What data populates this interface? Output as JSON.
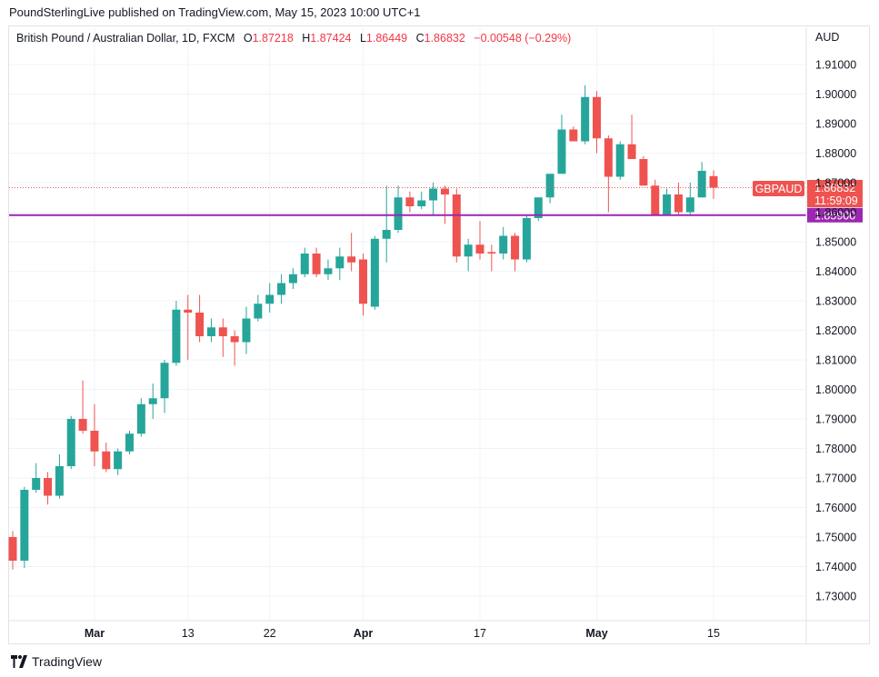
{
  "header": {
    "publisher_text": "PoundSterlingLive published on TradingView.com, May 15, 2023 10:00 UTC+1"
  },
  "legend": {
    "symbol_desc": "British Pound / Australian Dollar, 1D, FXCM",
    "open_label": "O",
    "open_value": "1.87218",
    "high_label": "H",
    "high_value": "1.87424",
    "low_label": "L",
    "low_value": "1.86449",
    "close_label": "C",
    "close_value": "1.86832",
    "change": "−0.00548 (−0.29%)"
  },
  "footer": {
    "brand": "TradingView"
  },
  "colors": {
    "up": "#26a69a",
    "down": "#ef5350",
    "hline": "#9c27b0",
    "grid": "#f0f3fa"
  },
  "chart_data": {
    "type": "candlestick",
    "symbol": "GBPAUD",
    "currency_label": "AUD",
    "y_ticks": [
      "1.73000",
      "1.74000",
      "1.75000",
      "1.76000",
      "1.77000",
      "1.78000",
      "1.79000",
      "1.80000",
      "1.81000",
      "1.82000",
      "1.83000",
      "1.84000",
      "1.85000",
      "1.86000",
      "1.87000",
      "1.88000",
      "1.89000",
      "1.90000",
      "1.91000"
    ],
    "ylim": [
      1.725,
      1.92
    ],
    "x_tick_labels": [
      {
        "label": "Mar",
        "bar": 7,
        "bold": true
      },
      {
        "label": "13",
        "bar": 15,
        "bold": false
      },
      {
        "label": "22",
        "bar": 22,
        "bold": false
      },
      {
        "label": "Apr",
        "bar": 30,
        "bold": true
      },
      {
        "label": "17",
        "bar": 40,
        "bold": false
      },
      {
        "label": "May",
        "bar": 50,
        "bold": true
      },
      {
        "label": "15",
        "bar": 60,
        "bold": false
      }
    ],
    "candles": [
      {
        "o": 1.75,
        "h": 1.752,
        "l": 1.739,
        "c": 1.742
      },
      {
        "o": 1.742,
        "h": 1.767,
        "l": 1.7395,
        "c": 1.766
      },
      {
        "o": 1.766,
        "h": 1.775,
        "l": 1.765,
        "c": 1.77
      },
      {
        "o": 1.77,
        "h": 1.772,
        "l": 1.761,
        "c": 1.764
      },
      {
        "o": 1.764,
        "h": 1.778,
        "l": 1.763,
        "c": 1.774
      },
      {
        "o": 1.774,
        "h": 1.791,
        "l": 1.773,
        "c": 1.79
      },
      {
        "o": 1.79,
        "h": 1.803,
        "l": 1.785,
        "c": 1.786
      },
      {
        "o": 1.786,
        "h": 1.795,
        "l": 1.774,
        "c": 1.779
      },
      {
        "o": 1.779,
        "h": 1.782,
        "l": 1.772,
        "c": 1.773
      },
      {
        "o": 1.773,
        "h": 1.78,
        "l": 1.771,
        "c": 1.779
      },
      {
        "o": 1.779,
        "h": 1.786,
        "l": 1.778,
        "c": 1.785
      },
      {
        "o": 1.785,
        "h": 1.797,
        "l": 1.784,
        "c": 1.795
      },
      {
        "o": 1.795,
        "h": 1.802,
        "l": 1.79,
        "c": 1.797
      },
      {
        "o": 1.797,
        "h": 1.81,
        "l": 1.792,
        "c": 1.809
      },
      {
        "o": 1.809,
        "h": 1.83,
        "l": 1.808,
        "c": 1.827
      },
      {
        "o": 1.827,
        "h": 1.832,
        "l": 1.81,
        "c": 1.826
      },
      {
        "o": 1.826,
        "h": 1.832,
        "l": 1.816,
        "c": 1.818
      },
      {
        "o": 1.818,
        "h": 1.824,
        "l": 1.816,
        "c": 1.821
      },
      {
        "o": 1.821,
        "h": 1.824,
        "l": 1.811,
        "c": 1.818
      },
      {
        "o": 1.818,
        "h": 1.82,
        "l": 1.808,
        "c": 1.816
      },
      {
        "o": 1.816,
        "h": 1.828,
        "l": 1.812,
        "c": 1.824
      },
      {
        "o": 1.824,
        "h": 1.832,
        "l": 1.823,
        "c": 1.829
      },
      {
        "o": 1.829,
        "h": 1.836,
        "l": 1.826,
        "c": 1.832
      },
      {
        "o": 1.832,
        "h": 1.839,
        "l": 1.829,
        "c": 1.836
      },
      {
        "o": 1.836,
        "h": 1.841,
        "l": 1.834,
        "c": 1.839
      },
      {
        "o": 1.839,
        "h": 1.848,
        "l": 1.838,
        "c": 1.846
      },
      {
        "o": 1.846,
        "h": 1.848,
        "l": 1.838,
        "c": 1.839
      },
      {
        "o": 1.839,
        "h": 1.844,
        "l": 1.837,
        "c": 1.841
      },
      {
        "o": 1.841,
        "h": 1.848,
        "l": 1.837,
        "c": 1.845
      },
      {
        "o": 1.845,
        "h": 1.853,
        "l": 1.84,
        "c": 1.843
      },
      {
        "o": 1.844,
        "h": 1.846,
        "l": 1.825,
        "c": 1.829
      },
      {
        "o": 1.828,
        "h": 1.852,
        "l": 1.827,
        "c": 1.851
      },
      {
        "o": 1.851,
        "h": 1.869,
        "l": 1.843,
        "c": 1.854
      },
      {
        "o": 1.854,
        "h": 1.869,
        "l": 1.853,
        "c": 1.865
      },
      {
        "o": 1.865,
        "h": 1.867,
        "l": 1.86,
        "c": 1.862
      },
      {
        "o": 1.862,
        "h": 1.867,
        "l": 1.861,
        "c": 1.864
      },
      {
        "o": 1.864,
        "h": 1.87,
        "l": 1.859,
        "c": 1.868
      },
      {
        "o": 1.868,
        "h": 1.869,
        "l": 1.856,
        "c": 1.866
      },
      {
        "o": 1.866,
        "h": 1.868,
        "l": 1.843,
        "c": 1.845
      },
      {
        "o": 1.845,
        "h": 1.851,
        "l": 1.84,
        "c": 1.849
      },
      {
        "o": 1.849,
        "h": 1.857,
        "l": 1.844,
        "c": 1.846
      },
      {
        "o": 1.8465,
        "h": 1.849,
        "l": 1.84,
        "c": 1.846
      },
      {
        "o": 1.846,
        "h": 1.855,
        "l": 1.844,
        "c": 1.852
      },
      {
        "o": 1.852,
        "h": 1.853,
        "l": 1.84,
        "c": 1.844
      },
      {
        "o": 1.844,
        "h": 1.859,
        "l": 1.843,
        "c": 1.858
      },
      {
        "o": 1.858,
        "h": 1.865,
        "l": 1.857,
        "c": 1.865
      },
      {
        "o": 1.865,
        "h": 1.873,
        "l": 1.863,
        "c": 1.873
      },
      {
        "o": 1.873,
        "h": 1.893,
        "l": 1.873,
        "c": 1.888
      },
      {
        "o": 1.888,
        "h": 1.889,
        "l": 1.884,
        "c": 1.884
      },
      {
        "o": 1.884,
        "h": 1.903,
        "l": 1.883,
        "c": 1.899
      },
      {
        "o": 1.899,
        "h": 1.901,
        "l": 1.88,
        "c": 1.885
      },
      {
        "o": 1.885,
        "h": 1.886,
        "l": 1.86,
        "c": 1.872
      },
      {
        "o": 1.872,
        "h": 1.884,
        "l": 1.871,
        "c": 1.883
      },
      {
        "o": 1.883,
        "h": 1.893,
        "l": 1.878,
        "c": 1.878
      },
      {
        "o": 1.878,
        "h": 1.879,
        "l": 1.869,
        "c": 1.869
      },
      {
        "o": 1.869,
        "h": 1.871,
        "l": 1.859,
        "c": 1.859
      },
      {
        "o": 1.859,
        "h": 1.868,
        "l": 1.859,
        "c": 1.866
      },
      {
        "o": 1.866,
        "h": 1.87,
        "l": 1.859,
        "c": 1.86
      },
      {
        "o": 1.86,
        "h": 1.87,
        "l": 1.859,
        "c": 1.865
      },
      {
        "o": 1.865,
        "h": 1.877,
        "l": 1.865,
        "c": 1.874
      },
      {
        "o": 1.8722,
        "h": 1.8742,
        "l": 1.8645,
        "c": 1.8683
      }
    ],
    "horizontal_line": {
      "value": 1.859,
      "label": "1.85900"
    },
    "last_price": {
      "symbol": "GBPAUD",
      "price": "1.86832",
      "countdown": "11:59:09",
      "value": 1.86832
    },
    "grid": true
  }
}
